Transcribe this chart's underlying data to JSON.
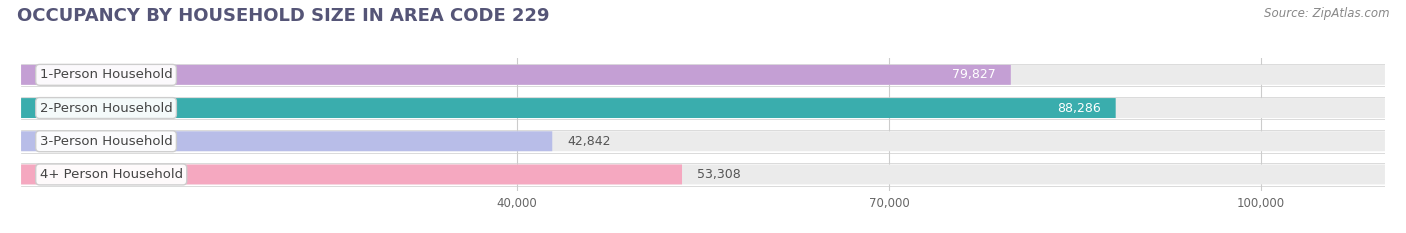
{
  "title": "OCCUPANCY BY HOUSEHOLD SIZE IN AREA CODE 229",
  "source": "Source: ZipAtlas.com",
  "categories": [
    "1-Person Household",
    "2-Person Household",
    "3-Person Household",
    "4+ Person Household"
  ],
  "values": [
    79827,
    88286,
    42842,
    53308
  ],
  "bar_colors": [
    "#c49fd4",
    "#3aadad",
    "#b8bde8",
    "#f5a8c0"
  ],
  "value_label_inside": [
    true,
    true,
    false,
    false
  ],
  "xlim_max": 110000,
  "xticks": [
    40000,
    70000,
    100000
  ],
  "xtick_labels": [
    "40,000",
    "70,000",
    "100,000"
  ],
  "title_fontsize": 13,
  "source_fontsize": 8.5,
  "label_fontsize": 9.5,
  "value_fontsize": 9,
  "background_color": "#ffffff",
  "bar_bg_color": "#ebebeb",
  "separator_color": "#cccccc",
  "title_color": "#555577",
  "label_text_color": "#444444",
  "value_inside_color": "#ffffff",
  "value_outside_color": "#555555"
}
